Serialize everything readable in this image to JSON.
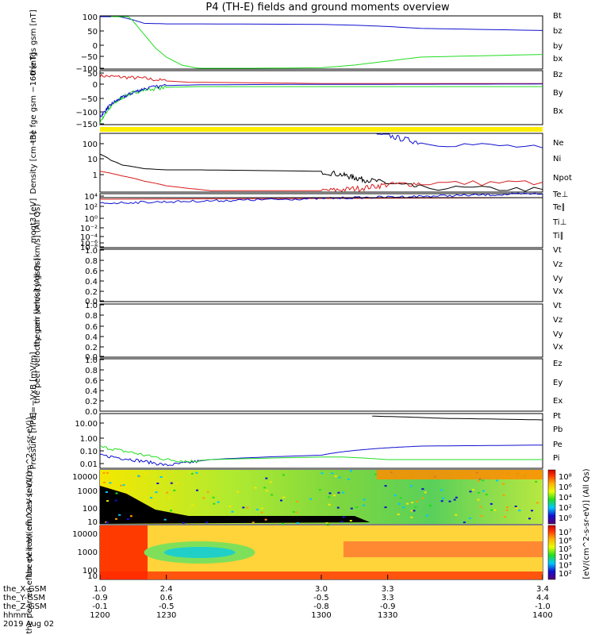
{
  "title": "P4 (TH-E) fields and ground moments overview",
  "date_label": "2019 Aug 02",
  "colors": {
    "black": "#000000",
    "red": "#d81b1b",
    "green": "#22dd22",
    "blue": "#1010d0",
    "yellow": "#ffee00"
  },
  "time_axis": {
    "rows": [
      {
        "label": "the_X-GSM",
        "values": [
          "1.0",
          "2.4",
          "3.0",
          "3.3",
          "3.4"
        ]
      },
      {
        "label": "the_Y-GSM",
        "values": [
          "-0.9",
          "0.6",
          "-0.5",
          "3.3",
          "4.4"
        ]
      },
      {
        "label": "the_Z-GSM",
        "values": [
          "-0.1",
          "-0.5",
          "-0.8",
          "-0.9",
          "-1.0"
        ]
      },
      {
        "label": "hhmm",
        "values": [
          "1200",
          "1230",
          "1300",
          "1330",
          "1400"
        ]
      }
    ]
  },
  "chart_data": [
    {
      "type": "line",
      "ylabel": "the fgs gsm [nT]",
      "yticks": [
        "100",
        "50",
        "0",
        "−50",
        "−100"
      ],
      "ylim": [
        -100,
        100
      ],
      "legend": [
        {
          "name": "Bt",
          "color": "#000000"
        },
        {
          "name": "bz",
          "color": "#d81b1b"
        },
        {
          "name": "by",
          "color": "#22dd22"
        },
        {
          "name": "bx",
          "color": "#1010d0"
        }
      ],
      "series": [
        {
          "color": "#1010d0",
          "x": [
            1200,
            1203,
            1206,
            1210,
            1215,
            1220,
            1230,
            1245,
            1300,
            1315,
            1330,
            1345,
            1400
          ],
          "y": [
            130,
            110,
            100,
            95,
            85,
            72,
            70,
            70,
            68,
            65,
            60,
            53,
            45
          ]
        },
        {
          "color": "#22dd22",
          "x": [
            1205,
            1210,
            1215,
            1220,
            1225,
            1230,
            1237,
            1245,
            1255,
            1300,
            1315,
            1330,
            1345,
            1400
          ],
          "y": [
            160,
            120,
            80,
            30,
            -20,
            -55,
            -85,
            -98,
            -98,
            -95,
            -85,
            -70,
            -55,
            -45
          ]
        }
      ]
    },
    {
      "type": "line",
      "ylabel": "the fge gsm −160 [nT]",
      "yticks": [
        "50",
        "0",
        "−50",
        "−100",
        "−150"
      ],
      "ylim": [
        -160,
        50
      ],
      "legend": [
        {
          "name": "Bz",
          "color": "#d81b1b"
        },
        {
          "name": "By",
          "color": "#22dd22"
        },
        {
          "name": "Bx",
          "color": "#1010d0"
        }
      ],
      "series": [
        {
          "color": "#d81b1b",
          "x": [
            1200,
            1210,
            1220,
            1230,
            1240,
            1300,
            1400
          ],
          "y": [
            30,
            25,
            20,
            10,
            5,
            0,
            0
          ]
        },
        {
          "color": "#22dd22",
          "x": [
            1200,
            1203,
            1206,
            1210,
            1215,
            1220,
            1230,
            1245,
            1300,
            1330,
            1400
          ],
          "y": [
            -150,
            -110,
            -80,
            -55,
            -35,
            -25,
            -15,
            -12,
            -12,
            -12,
            -12
          ]
        },
        {
          "color": "#1010d0",
          "x": [
            1200,
            1203,
            1206,
            1210,
            1215,
            1220,
            1230,
            1245,
            1300,
            1330,
            1400
          ],
          "y": [
            -130,
            -100,
            -75,
            -55,
            -35,
            -20,
            -8,
            -5,
            -3,
            -3,
            -2
          ]
        }
      ]
    },
    {
      "type": "line",
      "ylabel": "Density [cm−3]",
      "yticks": [
        "100",
        "10",
        "1"
      ],
      "yscale": "log",
      "ylim": [
        0.3,
        200
      ],
      "legend": [
        {
          "name": "Ne",
          "color": "#d81b1b"
        },
        {
          "name": "Ni",
          "color": "#000000"
        },
        {
          "name": "Npot",
          "color": "#1010d0"
        }
      ],
      "series": [
        {
          "color": "#000000",
          "x": [
            1200,
            1205,
            1210,
            1220,
            1230,
            1245,
            1300,
            1310,
            1315,
            1320,
            1330,
            1345,
            1400
          ],
          "y": [
            20,
            10,
            6,
            4,
            3.5,
            3.5,
            3,
            2,
            1.5,
            1.2,
            0.8,
            0.5,
            0.4
          ]
        },
        {
          "color": "#d81b1b",
          "x": [
            1200,
            1210,
            1220,
            1230,
            1240,
            1250,
            1300,
            1310,
            1320,
            1330,
            1345,
            1400
          ],
          "y": [
            3,
            1.8,
            1,
            0.6,
            0.45,
            0.35,
            0.35,
            0.4,
            0.5,
            0.7,
            0.8,
            0.9
          ]
        },
        {
          "color": "#1010d0",
          "x": [
            1325,
            1335,
            1345,
            1400
          ],
          "y": [
            200,
            120,
            70,
            40
          ]
        }
      ]
    },
    {
      "type": "line",
      "ylabel": "moqt3 [eV]",
      "yticks": [
        "10⁴",
        "10²",
        "10⁰",
        "10⁻²",
        "10⁻⁴",
        "10⁻⁶",
        "10⁻⁸"
      ],
      "yscale": "log",
      "legend": [
        {
          "name": "Te⊥",
          "color": "#d81b1b"
        },
        {
          "name": "Te∥",
          "color": "#000000"
        },
        {
          "name": "Ti⊥",
          "color": "#1010d0"
        },
        {
          "name": "Ti∥",
          "color": "#22dd22"
        }
      ]
    },
    {
      "type": "line",
      "ylabel": "the peir velocity gsm [km/s] (All Qs)",
      "yticks": [
        "1.0",
        "0.8",
        "0.6",
        "0.4",
        "0.2",
        "0.0"
      ],
      "ylim": [
        0,
        1
      ],
      "legend": [
        {
          "name": "Vt",
          "color": "#000000"
        },
        {
          "name": "Vz",
          "color": "#d81b1b"
        },
        {
          "name": "Vy",
          "color": "#22dd22"
        },
        {
          "name": "Vx",
          "color": "#1010d0"
        }
      ]
    },
    {
      "type": "line",
      "ylabel": "the peer velocity gsm [km/s] (All Qs)",
      "yticks": [
        "1.0",
        "0.8",
        "0.6",
        "0.4",
        "0.2",
        "0.0"
      ],
      "ylim": [
        0,
        1
      ],
      "legend": [
        {
          "name": "Vt",
          "color": "#000000"
        },
        {
          "name": "Vz",
          "color": "#d81b1b"
        },
        {
          "name": "Vy",
          "color": "#22dd22"
        },
        {
          "name": "Vx",
          "color": "#1010d0"
        }
      ]
    },
    {
      "type": "line",
      "ylabel": "E=−VxB [mV/m]",
      "yticks": [
        "1.0",
        "0.8",
        "0.6",
        "0.4",
        "0.2",
        "0.0"
      ],
      "ylim": [
        0,
        1
      ],
      "legend": [
        {
          "name": "Ez",
          "color": "#d81b1b"
        },
        {
          "name": "Ey",
          "color": "#22dd22"
        },
        {
          "name": "Ex",
          "color": "#1010d0"
        }
      ]
    },
    {
      "type": "line",
      "ylabel": "Pressure [nPa]",
      "yticks": [
        "10.00",
        "1.00",
        "0.10",
        "0.01"
      ],
      "yscale": "log",
      "ylim": [
        0.005,
        30
      ],
      "legend": [
        {
          "name": "Pt",
          "color": "#000000"
        },
        {
          "name": "Pb",
          "color": "#d81b1b"
        },
        {
          "name": "Pe",
          "color": "#22dd22"
        },
        {
          "name": "Pi",
          "color": "#1010d0"
        }
      ],
      "series": [
        {
          "color": "#000000",
          "x": [
            1323,
            1340,
            1355,
            1400
          ],
          "y": [
            20,
            17,
            14,
            11
          ]
        },
        {
          "color": "#1010d0",
          "x": [
            1200,
            1210,
            1220,
            1230,
            1240,
            1250,
            1300,
            1310,
            1320,
            1330,
            1345,
            1400
          ],
          "y": [
            0.04,
            0.025,
            0.015,
            0.008,
            0.012,
            0.02,
            0.04,
            0.07,
            0.1,
            0.13,
            0.17,
            0.2
          ]
        },
        {
          "color": "#22dd22",
          "x": [
            1200,
            1210,
            1220,
            1230,
            1240,
            1250,
            1300,
            1310,
            1320,
            1330,
            1345,
            1400
          ],
          "y": [
            0.15,
            0.08,
            0.04,
            0.02,
            0.015,
            0.02,
            0.03,
            0.03,
            0.025,
            0.02,
            0.02,
            0.02
          ]
        }
      ]
    },
    {
      "type": "heatmap",
      "ylabel": "the peir en eflux eV (eV/(cm^2-s-sr-eV))",
      "yticks": [
        "10000",
        "1000",
        "100",
        "10"
      ],
      "colorbar_ticks": [
        "10⁸",
        "10⁶",
        "10⁴",
        "10²",
        "10⁰"
      ]
    },
    {
      "type": "heatmap",
      "ylabel": "the peer en eflux eV (eV/(cm^2-s-sr-eV))",
      "yticks": [
        "10000",
        "1000",
        "100",
        "10"
      ],
      "colorbar_ticks": [
        "10⁷",
        "10⁶",
        "10⁵",
        "10⁴",
        "10³",
        "10²"
      ]
    }
  ],
  "colorbar_label": "[eV/(cm^2-s-sr-eV)] (All Qs)"
}
